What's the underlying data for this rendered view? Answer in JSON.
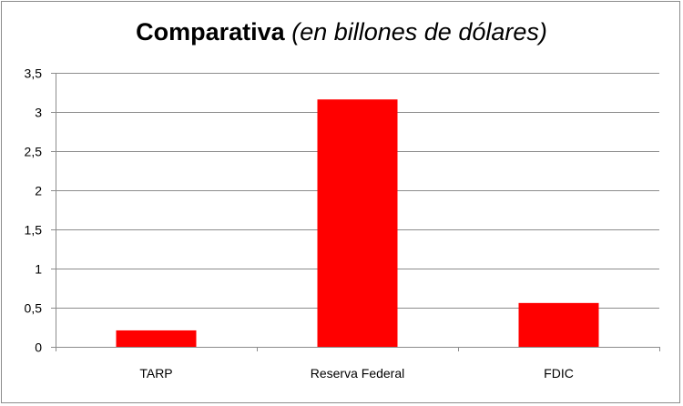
{
  "chart_data": {
    "type": "bar",
    "title": "Comparativa",
    "subtitle": "(en billones de dólares)",
    "categories": [
      "TARP",
      "Reserva Federal",
      "FDIC"
    ],
    "values": [
      0.21,
      3.16,
      0.56
    ],
    "ylim": [
      0,
      3.5
    ],
    "yticks": [
      0,
      0.5,
      1,
      1.5,
      2,
      2.5,
      3,
      3.5
    ],
    "ytick_labels": [
      "0",
      "0,5",
      "1",
      "1,5",
      "2",
      "2,5",
      "3",
      "3,5"
    ],
    "xlabel": "",
    "ylabel": "",
    "grid": true,
    "legend": "none",
    "bar_color": "#ff0000",
    "grid_color": "#8c8c8c"
  }
}
